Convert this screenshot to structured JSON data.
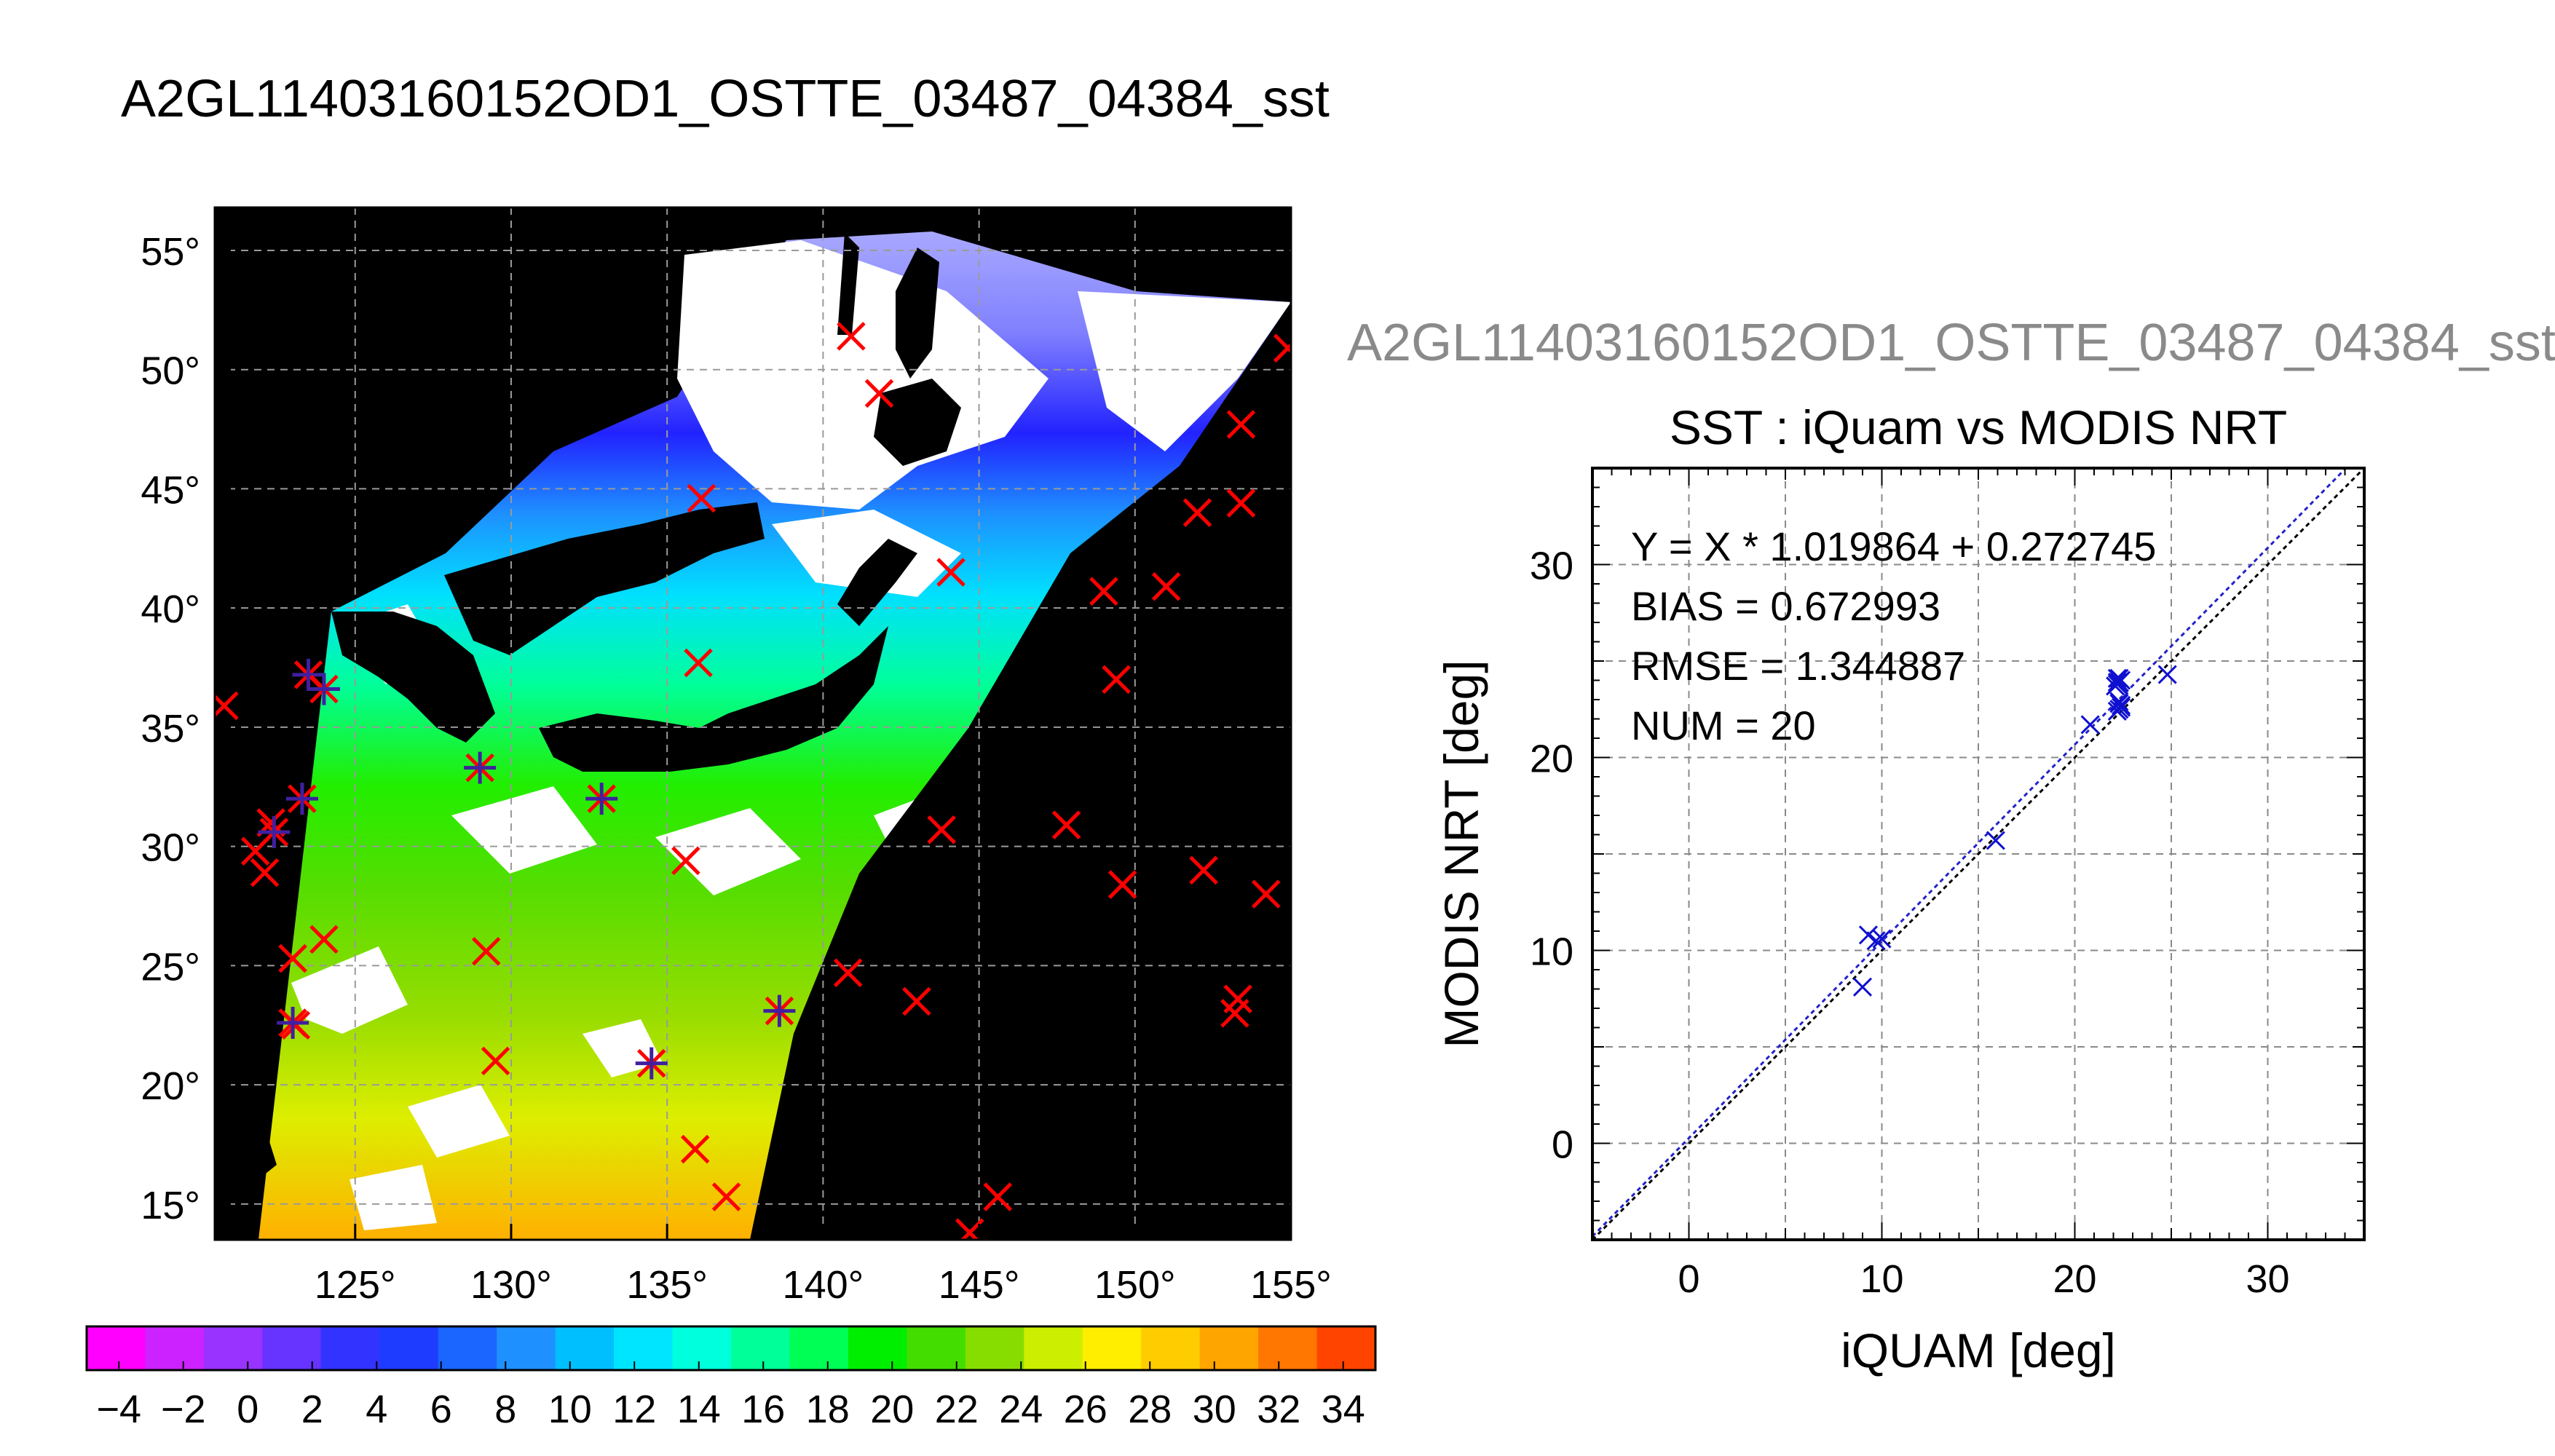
{
  "header": {
    "title": "A2GL11403160152OD1_OSTTE_03487_04384_sst",
    "ghost_title": "A2GL11403160152OD1_OSTTE_03487_04384_sst"
  },
  "chart_data": [
    {
      "type": "map",
      "description_of_axes": "longitude/latitude",
      "lon_range": [
        120.5,
        155.0
      ],
      "lat_range": [
        13.5,
        56.8
      ],
      "lon_ticks": [
        125,
        130,
        135,
        140,
        145,
        150,
        155
      ],
      "lat_ticks": [
        55,
        50,
        45,
        40,
        35,
        30,
        25,
        20,
        15
      ],
      "lon_tick_labels": [
        "125°",
        "130°",
        "135°",
        "140°",
        "145°",
        "150°",
        "155°"
      ],
      "lat_tick_labels": [
        "55°",
        "50°",
        "45°",
        "40°",
        "35°",
        "30°",
        "25°",
        "20°",
        "15°"
      ],
      "grid": true,
      "colorbar": {
        "min": -5,
        "max": 35,
        "tick_labels": [
          "−4",
          "−2",
          "0",
          "2",
          "4",
          "6",
          "8",
          "10",
          "12",
          "14",
          "16",
          "18",
          "20",
          "22",
          "24",
          "26",
          "28",
          "30",
          "32",
          "34"
        ],
        "colors": [
          "#ff00ff",
          "#cc22ff",
          "#9933ff",
          "#6633ff",
          "#3333ff",
          "#1e3cff",
          "#1a66ff",
          "#1e90ff",
          "#00bfff",
          "#00e5ff",
          "#00ffdd",
          "#00ff99",
          "#00ff55",
          "#00ee00",
          "#44dd00",
          "#88dd00",
          "#ccee00",
          "#ffee00",
          "#ffcc00",
          "#ffa500",
          "#ff7700",
          "#ff4400"
        ]
      },
      "markers": {
        "red_x_points": [
          [
            120.8,
            35.9
          ],
          [
            121.8,
            29.8
          ],
          [
            122.3,
            31.0
          ],
          [
            122.1,
            28.9
          ],
          [
            123.0,
            25.3
          ],
          [
            123.1,
            22.5
          ],
          [
            124.0,
            26.1
          ],
          [
            129.2,
            25.6
          ],
          [
            129.5,
            21.0
          ],
          [
            135.6,
            29.4
          ],
          [
            135.9,
            17.3
          ],
          [
            136.9,
            15.3
          ],
          [
            136.0,
            37.7
          ],
          [
            140.8,
            24.7
          ],
          [
            140.9,
            51.4
          ],
          [
            141.8,
            49.0
          ],
          [
            143.0,
            23.5
          ],
          [
            144.1,
            41.5
          ],
          [
            143.8,
            30.7
          ],
          [
            144.7,
            13.8
          ],
          [
            145.6,
            15.3
          ],
          [
            147.8,
            30.9
          ],
          [
            149.0,
            40.7
          ],
          [
            149.4,
            37.0
          ],
          [
            149.6,
            28.4
          ],
          [
            151.0,
            40.9
          ],
          [
            152.0,
            44.0
          ],
          [
            152.2,
            29.0
          ],
          [
            153.4,
            47.7
          ],
          [
            153.4,
            44.4
          ],
          [
            153.2,
            23.0
          ],
          [
            153.3,
            23.6
          ],
          [
            154.2,
            28.0
          ],
          [
            154.9,
            50.9
          ],
          [
            136.1,
            44.6
          ]
        ],
        "star_points": [
          [
            123.5,
            37.2
          ],
          [
            124.0,
            36.6
          ],
          [
            123.3,
            32.0
          ],
          [
            122.4,
            30.6
          ],
          [
            123.0,
            22.6
          ],
          [
            129.0,
            33.3
          ],
          [
            132.9,
            32.0
          ],
          [
            134.5,
            20.9
          ],
          [
            138.6,
            23.1
          ]
        ]
      }
    },
    {
      "type": "scatter",
      "title": "SST : iQuam vs MODIS NRT",
      "xlabel": "iQUAM [deg]",
      "ylabel": "MODIS NRT [deg]",
      "xlim": [
        -5,
        35
      ],
      "ylim": [
        -5,
        35
      ],
      "x_ticks": [
        0,
        10,
        20,
        30
      ],
      "y_ticks": [
        0,
        10,
        20,
        30
      ],
      "grid": true,
      "stats": {
        "fit": "Y = X * 1.019864 + 0.272745",
        "bias": "BIAS = 0.672993",
        "rmse": "RMSE = 1.344887",
        "num": "NUM = 20"
      },
      "fit_line": {
        "slope": 1.019864,
        "intercept": 0.272745
      },
      "series": [
        {
          "marker": "x",
          "color": "#1010d0",
          "x": [
            9.0,
            9.3,
            9.7,
            10.0,
            15.9,
            20.8,
            22.2,
            22.3,
            22.4,
            22.2,
            22.3,
            22.2,
            24.8,
            22.4,
            22.1,
            22.3,
            22.2,
            22.3,
            22.4,
            22.3
          ],
          "y": [
            8.1,
            10.8,
            10.5,
            10.6,
            15.7,
            21.7,
            22.4,
            22.8,
            22.6,
            23.9,
            24.1,
            23.8,
            24.3,
            24.0,
            23.7,
            22.5,
            24.1,
            23.9,
            22.7,
            22.9
          ]
        }
      ]
    }
  ]
}
